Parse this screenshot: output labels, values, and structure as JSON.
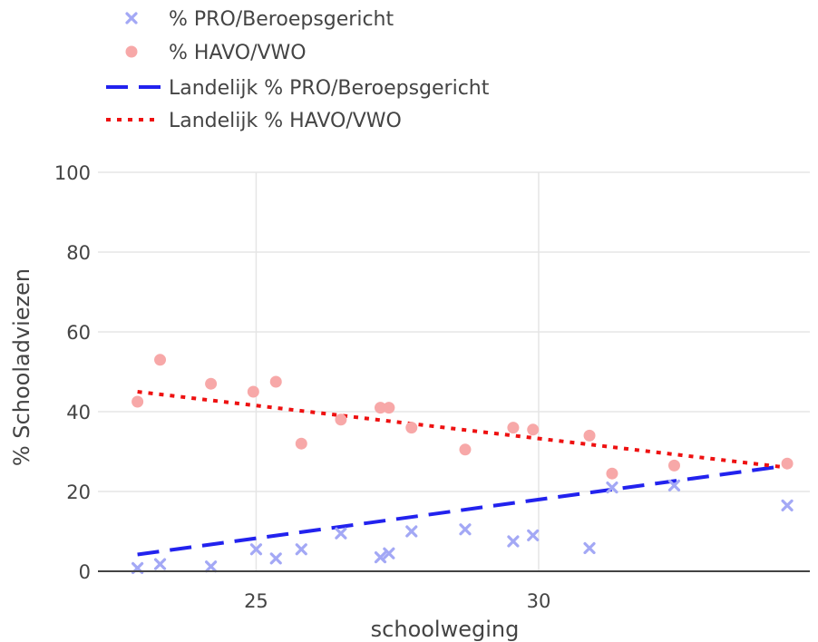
{
  "chart_data": {
    "type": "scatter",
    "title": "",
    "xlabel": "schoolweging",
    "ylabel": "% Schooladviezen",
    "xlim": [
      22.2,
      34.8
    ],
    "ylim": [
      0,
      100
    ],
    "xticks": [
      25,
      30
    ],
    "yticks": [
      0,
      20,
      40,
      60,
      80,
      100
    ],
    "grid": true,
    "legend_position": "top-left",
    "series": [
      {
        "name": "% PRO/Beroepsgericht",
        "kind": "scatter",
        "marker": "x",
        "color": "#a3a8f5",
        "points": [
          [
            22.9,
            0.8
          ],
          [
            23.3,
            1.8
          ],
          [
            24.2,
            1.2
          ],
          [
            25.0,
            5.5
          ],
          [
            25.35,
            3.2
          ],
          [
            25.8,
            5.5
          ],
          [
            26.5,
            9.5
          ],
          [
            27.2,
            3.5
          ],
          [
            27.35,
            4.5
          ],
          [
            27.75,
            10.0
          ],
          [
            28.7,
            10.5
          ],
          [
            29.55,
            7.5
          ],
          [
            29.9,
            9.0
          ],
          [
            30.9,
            5.8
          ],
          [
            31.3,
            21.0
          ],
          [
            32.4,
            21.5
          ],
          [
            34.4,
            16.5
          ]
        ]
      },
      {
        "name": "% HAVO/VWO",
        "kind": "scatter",
        "marker": "circle",
        "color": "#f7a8a8",
        "points": [
          [
            22.9,
            42.5
          ],
          [
            23.3,
            53.0
          ],
          [
            24.2,
            47.0
          ],
          [
            24.95,
            45.0
          ],
          [
            25.35,
            47.5
          ],
          [
            25.8,
            32.0
          ],
          [
            26.5,
            38.0
          ],
          [
            27.2,
            41.0
          ],
          [
            27.35,
            41.0
          ],
          [
            27.75,
            36.0
          ],
          [
            28.7,
            30.5
          ],
          [
            29.55,
            36.0
          ],
          [
            29.9,
            35.5
          ],
          [
            30.9,
            34.0
          ],
          [
            31.3,
            24.5
          ],
          [
            32.4,
            26.5
          ],
          [
            34.4,
            27.0
          ]
        ]
      },
      {
        "name": "Landelijk % PRO/Beroepsgericht",
        "kind": "line",
        "dash": "dash",
        "color": "#2222ee",
        "points": [
          [
            22.9,
            4.2
          ],
          [
            34.4,
            26.5
          ]
        ]
      },
      {
        "name": "Landelijk % HAVO/VWO",
        "kind": "line",
        "dash": "dot",
        "color": "#ee1111",
        "points": [
          [
            22.9,
            45.0
          ],
          [
            34.4,
            26.0
          ]
        ]
      }
    ]
  }
}
